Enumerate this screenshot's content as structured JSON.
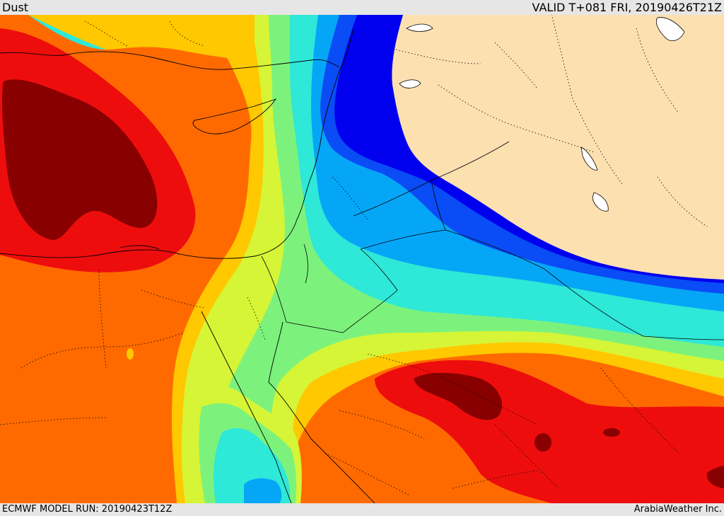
{
  "header": {
    "title": "Dust",
    "valid": "VALID T+081 FRI, 20190426T21Z"
  },
  "footer": {
    "model_run": "ECMWF MODEL RUN: 20190423T12Z",
    "credit": "ArabiaWeather Inc."
  },
  "colors": {
    "land_no_data": "#fde0b0",
    "level_1": "#0000ee",
    "level_2": "#0a4cf5",
    "level_3": "#06a6f7",
    "level_4": "#2ee8d8",
    "level_5": "#7cf27c",
    "level_6": "#d5f536",
    "level_7": "#ffc800",
    "level_8": "#ff6a00",
    "level_9": "#ee0d0d",
    "level_10": "#880000",
    "water_body": "#ffffff",
    "borders": "#000000"
  }
}
